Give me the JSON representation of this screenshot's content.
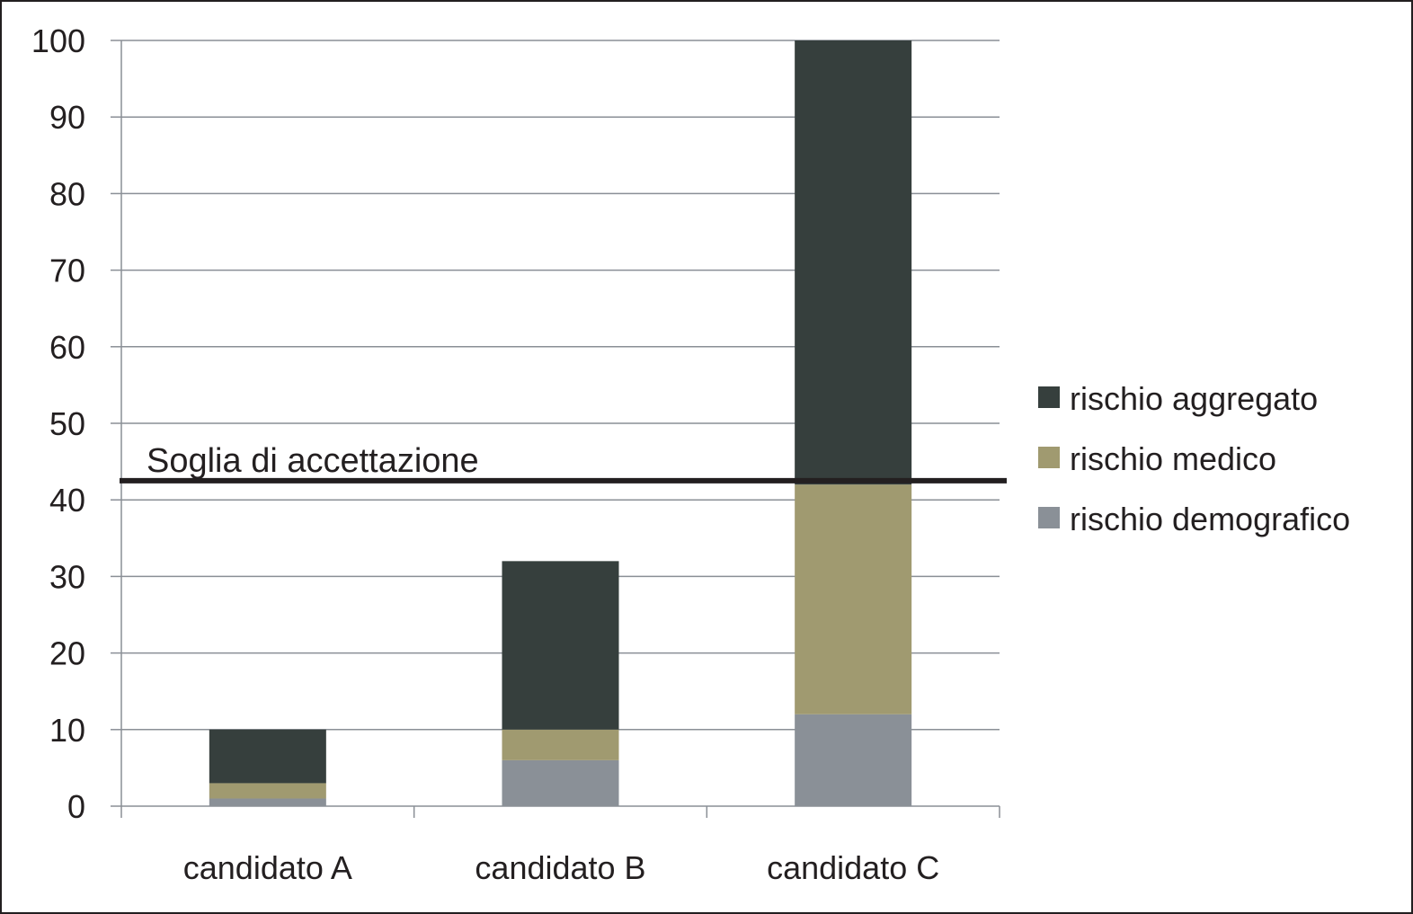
{
  "chart_data": {
    "type": "bar",
    "stacked": true,
    "categories": [
      "candidato A",
      "candidato B",
      "candidato C"
    ],
    "series": [
      {
        "name": "rischio demografico",
        "values": [
          1,
          6,
          12
        ],
        "color": "#8a9097"
      },
      {
        "name": "rischio medico",
        "values": [
          2,
          4,
          30
        ],
        "color": "#a09a70"
      },
      {
        "name": "rischio aggregato",
        "values": [
          7,
          22,
          58
        ],
        "color": "#363f3d"
      }
    ],
    "legend_order": [
      "rischio aggregato",
      "rischio medico",
      "rischio demografico"
    ],
    "ylim": [
      0,
      100
    ],
    "yticks": [
      "0",
      "10",
      "20",
      "30",
      "40",
      "50",
      "60",
      "70",
      "80",
      "90",
      "100"
    ],
    "ytick_values": [
      0,
      10,
      20,
      30,
      40,
      50,
      60,
      70,
      80,
      90,
      100
    ],
    "grid": true,
    "legend_position": "right",
    "threshold": {
      "label": "Soglia di accettazione",
      "value": 42.5,
      "color": "#231f20"
    },
    "title": "",
    "xlabel": "",
    "ylabel": ""
  }
}
